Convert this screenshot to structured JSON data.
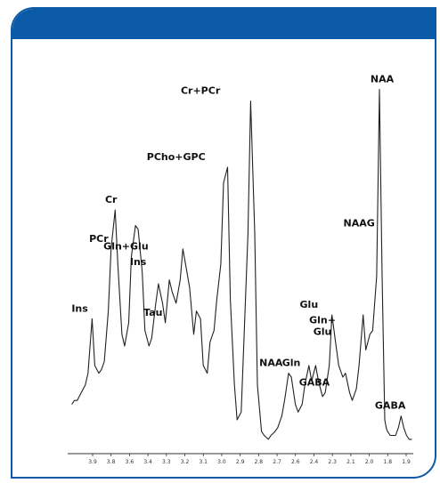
{
  "panel": {
    "header_color": "#0a5aa8",
    "border_color": "#0a5aa8"
  },
  "chart_data": {
    "type": "line",
    "title": "",
    "xlabel": "",
    "ylabel": "",
    "x_axis": {
      "reversed": true,
      "xlim": [
        4.35,
        1.8
      ],
      "unit": "ppm"
    },
    "ylim": [
      0,
      1.0
    ],
    "grid": false,
    "x_ticks": [
      "3.9",
      "3.8",
      "3.6",
      "3.4",
      "3.3",
      "3.2",
      "3.1",
      "3.0",
      "2.9",
      "2.8",
      "2.7",
      "2.6",
      "2.4",
      "2.3",
      "2.1",
      "2.0",
      "1.8",
      "1.9"
    ],
    "series": [
      {
        "line_color": "#222222",
        "x": [
          4.32,
          4.3,
          4.28,
          4.25,
          4.22,
          4.2,
          4.17,
          4.15,
          4.12,
          4.1,
          4.08,
          4.05,
          4.03,
          4.0,
          3.98,
          3.95,
          3.93,
          3.9,
          3.88,
          3.85,
          3.83,
          3.8,
          3.78,
          3.75,
          3.73,
          3.7,
          3.68,
          3.65,
          3.63,
          3.6,
          3.58,
          3.55,
          3.52,
          3.5,
          3.47,
          3.45,
          3.42,
          3.4,
          3.37,
          3.35,
          3.32,
          3.3,
          3.27,
          3.25,
          3.22,
          3.2,
          3.17,
          3.15,
          3.12,
          3.1,
          3.07,
          3.05,
          3.02,
          3.0,
          2.97,
          2.95,
          2.92,
          2.9,
          2.87,
          2.85,
          2.82,
          2.8,
          2.77,
          2.75,
          2.72,
          2.7,
          2.67,
          2.65,
          2.62,
          2.6,
          2.57,
          2.55,
          2.52,
          2.5,
          2.47,
          2.45,
          2.42,
          2.4,
          2.37,
          2.35,
          2.32,
          2.3,
          2.27,
          2.25,
          2.22,
          2.2,
          2.17,
          2.15,
          2.12,
          2.1,
          2.07,
          2.05,
          2.03,
          2.01,
          2.0,
          1.99,
          1.97,
          1.95,
          1.93,
          1.91,
          1.89,
          1.87,
          1.85,
          1.83,
          1.81
        ],
        "y": [
          0.12,
          0.13,
          0.13,
          0.15,
          0.17,
          0.2,
          0.34,
          0.22,
          0.2,
          0.21,
          0.23,
          0.36,
          0.52,
          0.62,
          0.48,
          0.3,
          0.27,
          0.33,
          0.5,
          0.58,
          0.57,
          0.46,
          0.31,
          0.27,
          0.29,
          0.38,
          0.43,
          0.38,
          0.33,
          0.44,
          0.41,
          0.38,
          0.44,
          0.52,
          0.46,
          0.42,
          0.3,
          0.36,
          0.34,
          0.22,
          0.2,
          0.28,
          0.31,
          0.39,
          0.48,
          0.69,
          0.73,
          0.39,
          0.17,
          0.08,
          0.1,
          0.28,
          0.56,
          0.9,
          0.56,
          0.17,
          0.05,
          0.04,
          0.03,
          0.04,
          0.05,
          0.06,
          0.09,
          0.13,
          0.2,
          0.19,
          0.12,
          0.1,
          0.12,
          0.17,
          0.22,
          0.18,
          0.22,
          0.18,
          0.14,
          0.15,
          0.22,
          0.35,
          0.27,
          0.22,
          0.19,
          0.2,
          0.15,
          0.13,
          0.16,
          0.22,
          0.35,
          0.26,
          0.3,
          0.31,
          0.45,
          0.93,
          0.45,
          0.08,
          0.06,
          0.05,
          0.04,
          0.04,
          0.04,
          0.06,
          0.09,
          0.06,
          0.04,
          0.03,
          0.03
        ]
      }
    ],
    "annotations": [
      {
        "text": "Ins",
        "x": 4.2,
        "y": 0.34,
        "anchor": "end"
      },
      {
        "text": "PCr",
        "x": 4.05,
        "y": 0.52,
        "anchor": "end"
      },
      {
        "text": "Cr",
        "x": 4.03,
        "y": 0.62,
        "anchor": "middle"
      },
      {
        "text": "Gln+Glu",
        "x": 3.92,
        "y": 0.5,
        "anchor": "middle"
      },
      {
        "text": "Ins",
        "x": 3.83,
        "y": 0.46,
        "anchor": "middle"
      },
      {
        "text": "Tau",
        "x": 3.72,
        "y": 0.33,
        "anchor": "middle"
      },
      {
        "text": "PCho+GPC",
        "x": 3.55,
        "y": 0.73,
        "anchor": "middle"
      },
      {
        "text": "Cr+PCr",
        "x": 3.37,
        "y": 0.9,
        "anchor": "middle"
      },
      {
        "text": "NAA",
        "x": 2.85,
        "y": 0.2,
        "anchor": "middle"
      },
      {
        "text": "Gln",
        "x": 2.7,
        "y": 0.2,
        "anchor": "middle"
      },
      {
        "text": "GABA",
        "x": 2.53,
        "y": 0.15,
        "anchor": "middle"
      },
      {
        "text": "Glu",
        "x": 2.57,
        "y": 0.35,
        "anchor": "middle"
      },
      {
        "text": "Gln+",
        "x": 2.47,
        "y": 0.31,
        "anchor": "middle"
      },
      {
        "text": "Glu",
        "x": 2.47,
        "y": 0.28,
        "anchor": "middle"
      },
      {
        "text": "NAAG",
        "x": 2.2,
        "y": 0.56,
        "anchor": "middle"
      },
      {
        "text": "NAA",
        "x": 2.03,
        "y": 0.93,
        "anchor": "middle"
      },
      {
        "text": "GABA",
        "x": 1.97,
        "y": 0.09,
        "anchor": "middle"
      }
    ]
  }
}
